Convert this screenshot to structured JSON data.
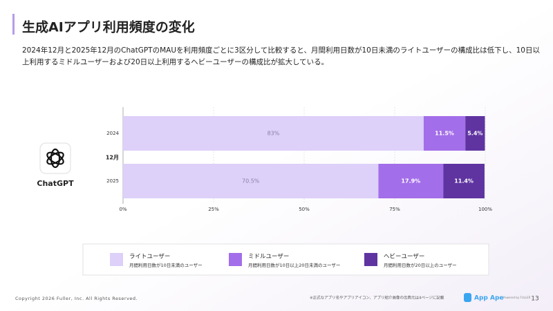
{
  "header": {
    "title": "生成AIアプリ利用頻度の変化",
    "description": "2024年12月と2025年12月のChatGPTのMAUを利用頻度ごとに3区分して比較すると、月間利用日数が10日未満のライトユーザーの構成比は低下し、10日以上利用するミドルユーザーおよび20日以上利用するヘビーユーザーの構成比が拡大している。"
  },
  "app": {
    "name": "ChatGPT"
  },
  "chart_data": {
    "type": "stacked-barh",
    "ylabel": "12月",
    "categories": [
      "2024",
      "2025"
    ],
    "series": [
      {
        "name": "ライトユーザー",
        "description": "月間利用日数が10日未満のユーザー",
        "color": "#ddd0f9",
        "label_color": "#8c7fa6",
        "values": [
          83,
          70.5
        ],
        "value_labels": [
          "83%",
          "70.5%"
        ]
      },
      {
        "name": "ミドルユーザー",
        "description": "月間利用日数が10日以上20日未満のユーザー",
        "color": "#a36ee9",
        "label_color": "#ffffff",
        "values": [
          11.5,
          17.9
        ],
        "value_labels": [
          "11.5%",
          "17.9%"
        ]
      },
      {
        "name": "ヘビーユーザー",
        "description": "月間利用日数が20日以上のユーザー",
        "color": "#5f34a1",
        "label_color": "#ffffff",
        "values": [
          5.4,
          11.4
        ],
        "value_labels": [
          "5.4%",
          "11.4%"
        ]
      }
    ],
    "xlim": [
      0,
      100
    ],
    "xticks": [
      {
        "value": 0,
        "label": "0%"
      },
      {
        "value": 25,
        "label": "25%"
      },
      {
        "value": 50,
        "label": "50%"
      },
      {
        "value": 75,
        "label": "75%"
      },
      {
        "value": 100,
        "label": "100%"
      }
    ],
    "grid": true
  },
  "footer": {
    "copyright": "Copyright 2026 Fuller, Inc. All Rights Reserved.",
    "note": "※正式なアプリ名やアプリアイコン、アプリ紹介画像の出典元は4ページに記載",
    "brand": "App Ape",
    "powered": "Powered by FULLER",
    "page": "13"
  }
}
